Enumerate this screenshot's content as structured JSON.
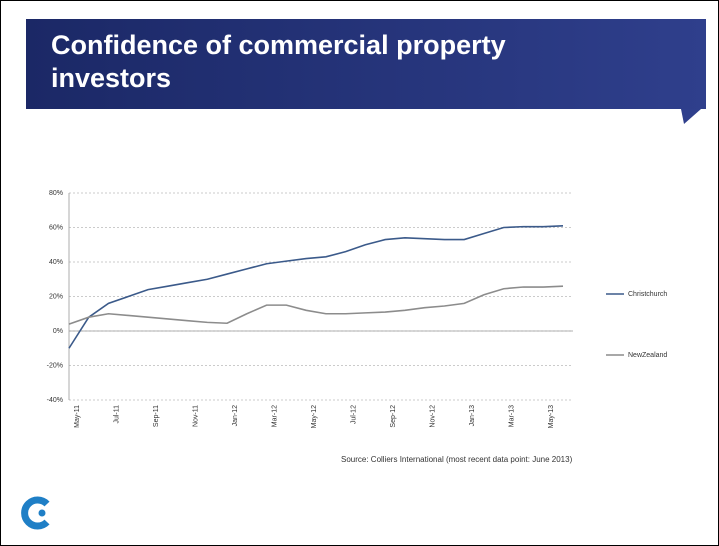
{
  "chart_data": {
    "type": "line",
    "title": "Confidence of commercial property investors",
    "source": "Source: Colliers International (most recent data point: June 2013)",
    "categories": [
      "May-11",
      null,
      "Jul-11",
      null,
      "Sep-11",
      null,
      "Nov-11",
      null,
      "Jan-12",
      null,
      "Mar-12",
      null,
      "May-12",
      null,
      "Jul-12",
      null,
      "Sep-12",
      null,
      "Nov-12",
      null,
      "Jan-13",
      null,
      "Mar-13",
      null,
      "May-13",
      null
    ],
    "series": [
      {
        "name": "Christchurch",
        "color": "#3b5a8a",
        "values": [
          -10,
          8,
          16,
          20,
          24,
          26,
          28,
          30,
          33,
          36,
          39,
          40.5,
          42,
          43,
          46,
          50,
          53,
          54,
          53.5,
          53,
          53,
          56.5,
          60,
          60.5,
          60.5,
          61
        ]
      },
      {
        "name": "NewZealand",
        "color": "#8c8c8c",
        "values": [
          4,
          8,
          10,
          9,
          8,
          7,
          6,
          5,
          4.5,
          10,
          15,
          15,
          12,
          10,
          10,
          10.5,
          11,
          12,
          13.5,
          14.5,
          16,
          21,
          24.5,
          25.5,
          25.5,
          26
        ]
      }
    ],
    "ylim": [
      -40,
      80
    ],
    "yticks": [
      {
        "value": -40,
        "label": "-40%"
      },
      {
        "value": -20,
        "label": "-20%"
      },
      {
        "value": 0,
        "label": "0%"
      },
      {
        "value": 20,
        "label": "20%"
      },
      {
        "value": 40,
        "label": "40%"
      },
      {
        "value": 60,
        "label": "60%"
      },
      {
        "value": 80,
        "label": "80%"
      }
    ],
    "grid": true
  }
}
